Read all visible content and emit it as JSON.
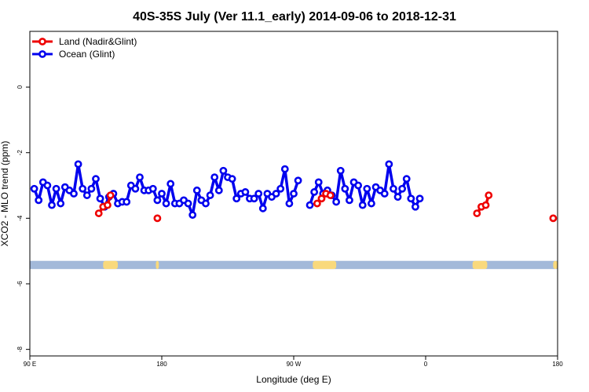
{
  "chart_data": {
    "type": "line",
    "title": "40S-35S July (Ver 11.1_early)   2014-09-06 to 2018-12-31",
    "xlabel": "Longitude (deg E)",
    "ylabel": "XCO2 - MLO trend (ppm)",
    "xlim": [
      90,
      450
    ],
    "ylim": [
      -8.2,
      1.7
    ],
    "x_ticks": [
      {
        "value": 90,
        "label": "90 E"
      },
      {
        "value": 180,
        "label": "180"
      },
      {
        "value": 270,
        "label": "90 W"
      },
      {
        "value": 360,
        "label": "0"
      },
      {
        "value": 450,
        "label": "180"
      }
    ],
    "y_ticks": [
      {
        "value": 0,
        "label": "0"
      },
      {
        "value": -2,
        "label": "-2"
      },
      {
        "value": -4,
        "label": "-4"
      },
      {
        "value": -6,
        "label": "-6"
      },
      {
        "value": -8,
        "label": "-8"
      }
    ],
    "legend_position": "top-left",
    "grid": false,
    "band": {
      "y_min": -5.3,
      "y_max": -5.55,
      "color": "#a3b9d9",
      "land_color": "#f9d97c",
      "land_spans": [
        [
          140,
          150
        ],
        [
          176,
          178
        ],
        [
          283,
          299
        ],
        [
          392,
          402
        ],
        [
          447,
          450
        ]
      ]
    },
    "series": [
      {
        "name": "Land (Nadir&Glint)",
        "color": "#ee0000",
        "segments": [
          [
            [
              137,
              -3.85
            ],
            [
              140,
              -3.65
            ],
            [
              143,
              -3.6
            ],
            [
              145,
              -3.3
            ]
          ],
          [
            [
              177,
              -4.0
            ]
          ],
          [
            [
              286,
              -3.55
            ],
            [
              289,
              -3.4
            ],
            [
              292,
              -3.25
            ],
            [
              295,
              -3.3
            ]
          ],
          [
            [
              395,
              -3.85
            ],
            [
              398,
              -3.65
            ],
            [
              401,
              -3.6
            ],
            [
              403,
              -3.3
            ]
          ],
          [
            [
              447,
              -4.0
            ]
          ]
        ]
      },
      {
        "name": "Ocean (Glint)",
        "color": "#0000ee",
        "segments": [
          [
            [
              93,
              -3.1
            ],
            [
              96,
              -3.45
            ],
            [
              99,
              -2.9
            ],
            [
              102,
              -3.0
            ],
            [
              105,
              -3.6
            ],
            [
              108,
              -3.1
            ],
            [
              111,
              -3.55
            ],
            [
              114,
              -3.05
            ],
            [
              117,
              -3.15
            ],
            [
              120,
              -3.25
            ],
            [
              123,
              -2.35
            ],
            [
              126,
              -3.1
            ],
            [
              129,
              -3.3
            ],
            [
              132,
              -3.1
            ],
            [
              135,
              -2.8
            ],
            [
              138,
              -3.4
            ],
            [
              141,
              -3.65
            ],
            [
              144,
              -3.35
            ],
            [
              147,
              -3.25
            ],
            [
              150,
              -3.55
            ],
            [
              153,
              -3.5
            ],
            [
              156,
              -3.5
            ],
            [
              159,
              -3.0
            ],
            [
              162,
              -3.1
            ],
            [
              165,
              -2.75
            ],
            [
              168,
              -3.15
            ],
            [
              171,
              -3.15
            ],
            [
              174,
              -3.1
            ],
            [
              177,
              -3.45
            ],
            [
              180,
              -3.25
            ],
            [
              183,
              -3.55
            ],
            [
              186,
              -2.95
            ],
            [
              189,
              -3.55
            ],
            [
              192,
              -3.55
            ],
            [
              195,
              -3.45
            ],
            [
              198,
              -3.55
            ],
            [
              201,
              -3.9
            ],
            [
              204,
              -3.15
            ],
            [
              207,
              -3.45
            ],
            [
              210,
              -3.55
            ],
            [
              213,
              -3.3
            ],
            [
              216,
              -2.75
            ],
            [
              219,
              -3.15
            ],
            [
              222,
              -2.55
            ],
            [
              225,
              -2.75
            ],
            [
              228,
              -2.8
            ],
            [
              231,
              -3.4
            ],
            [
              234,
              -3.25
            ],
            [
              237,
              -3.2
            ],
            [
              240,
              -3.4
            ],
            [
              243,
              -3.4
            ],
            [
              246,
              -3.25
            ],
            [
              249,
              -3.7
            ],
            [
              252,
              -3.25
            ],
            [
              255,
              -3.35
            ],
            [
              258,
              -3.25
            ],
            [
              261,
              -3.1
            ],
            [
              264,
              -2.5
            ],
            [
              267,
              -3.55
            ],
            [
              270,
              -3.25
            ],
            [
              273,
              -2.85
            ]
          ],
          [
            [
              281,
              -3.6
            ],
            [
              284,
              -3.2
            ],
            [
              287,
              -2.9
            ],
            [
              290,
              -3.25
            ],
            [
              293,
              -3.15
            ],
            [
              296,
              -3.3
            ],
            [
              299,
              -3.5
            ],
            [
              302,
              -2.55
            ],
            [
              305,
              -3.1
            ],
            [
              308,
              -3.45
            ],
            [
              311,
              -2.9
            ],
            [
              314,
              -3.0
            ],
            [
              317,
              -3.6
            ],
            [
              320,
              -3.1
            ],
            [
              323,
              -3.55
            ],
            [
              326,
              -3.05
            ],
            [
              329,
              -3.15
            ],
            [
              332,
              -3.25
            ],
            [
              335,
              -2.35
            ],
            [
              338,
              -3.1
            ],
            [
              341,
              -3.35
            ],
            [
              344,
              -3.1
            ],
            [
              347,
              -2.8
            ],
            [
              350,
              -3.4
            ],
            [
              353,
              -3.65
            ],
            [
              356,
              -3.4
            ]
          ]
        ]
      }
    ]
  }
}
